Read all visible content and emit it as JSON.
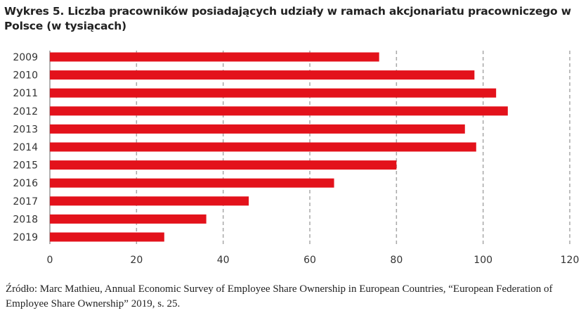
{
  "chart_data": {
    "type": "bar",
    "orientation": "horizontal",
    "title": "Wykres 5. Liczba pracowników posiadających udziały w ramach akcjonariatu pracowniczego w Polsce (w tysiącach)",
    "categories": [
      "2009",
      "2010",
      "2011",
      "2012",
      "2013",
      "2014",
      "2015",
      "2016",
      "2017",
      "2018",
      "2019"
    ],
    "values": [
      76,
      98,
      103,
      105.7,
      95.8,
      98.4,
      80,
      65.6,
      45.9,
      36.1,
      26.4
    ],
    "xlim": [
      0,
      120
    ],
    "xticks": [
      0,
      20,
      40,
      60,
      80,
      100,
      120
    ],
    "xlabel": "",
    "ylabel": "",
    "grid": "vertical dashed",
    "bar_color": "#e3121b",
    "source": "Źródło: Marc Mathieu, Annual Economic Survey of Employee Share Ownership in European Countries, “European Federation of Employee Share Ownership” 2019, s. 25."
  }
}
